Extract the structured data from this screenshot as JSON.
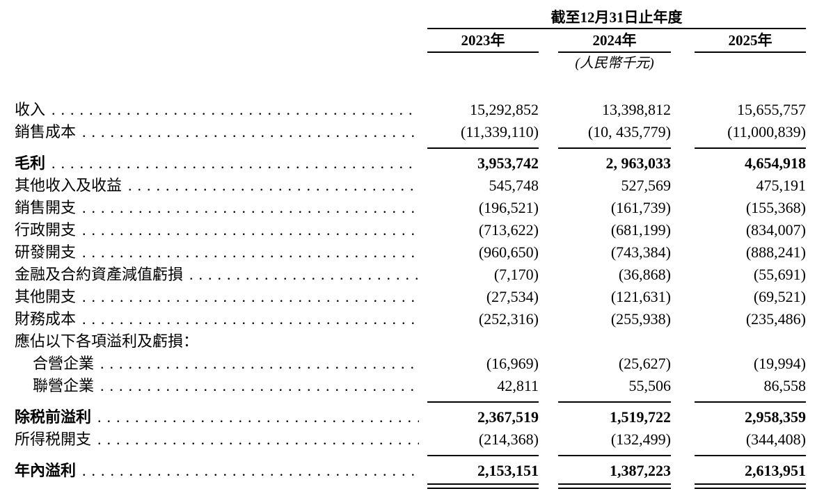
{
  "header": {
    "period_title": "截至12月31日止年度",
    "years": [
      "2023年",
      "2024年",
      "2025年"
    ],
    "unit_note": "(人民幣千元)"
  },
  "rows": [
    {
      "label": "收入",
      "values": [
        "15,292,852",
        "13,398,812",
        "15,655,757"
      ]
    },
    {
      "label": "銷售成本",
      "values": [
        "(11,339,110)",
        "(10, 435,779)",
        "(11,000,839)"
      ]
    },
    {
      "label": "毛利",
      "values": [
        "3,953,742",
        "2, 963,033",
        "4,654,918"
      ]
    },
    {
      "label": "其他收入及收益",
      "values": [
        "545,748",
        "527,569",
        "475,191"
      ]
    },
    {
      "label": "銷售開支",
      "values": [
        "(196,521)",
        "(161,739)",
        "(155,368)"
      ]
    },
    {
      "label": "行政開支",
      "values": [
        "(713,622)",
        "(681,199)",
        "(834,007)"
      ]
    },
    {
      "label": "研發開支",
      "values": [
        "(960,650)",
        "(743,384)",
        "(888,241)"
      ]
    },
    {
      "label": "金融及合約資產減值虧損",
      "values": [
        "(7,170)",
        "(36,868)",
        "(55,691)"
      ]
    },
    {
      "label": "其他開支",
      "values": [
        "(27,534)",
        "(121,631)",
        "(69,521)"
      ]
    },
    {
      "label": "財務成本",
      "values": [
        "(252,316)",
        "(255,938)",
        "(235,486)"
      ]
    },
    {
      "label": "應佔以下各項溢利及虧損：",
      "values": [
        "",
        "",
        ""
      ]
    },
    {
      "label": "合營企業",
      "values": [
        "(16,969)",
        "(25,627)",
        "(19,994)"
      ]
    },
    {
      "label": "聯營企業",
      "values": [
        "42,811",
        "55,506",
        "86,558"
      ]
    },
    {
      "label": "除税前溢利",
      "values": [
        "2,367,519",
        "1,519,722",
        "2,958,359"
      ]
    },
    {
      "label": "所得税開支",
      "values": [
        "(214,368)",
        "(132,499)",
        "(344,408)"
      ]
    },
    {
      "label": "年內溢利",
      "values": [
        "2,153,151",
        "1,387,223",
        "2,613,951"
      ]
    }
  ]
}
